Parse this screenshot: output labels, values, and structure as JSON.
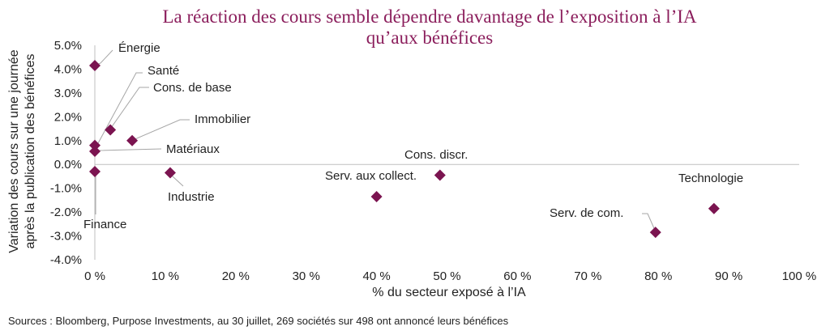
{
  "chart_data": {
    "type": "scatter",
    "title_line1": "La réaction des cours semble dépendre davantage de l’exposition à l’IA",
    "title_line2": "qu’aux bénéfices",
    "xlabel": "% du secteur exposé à l’IA",
    "ylabel_line1": "Variation des cours sur une journée",
    "ylabel_line2": "après la publication des bénéfices",
    "xlim": [
      0,
      100
    ],
    "ylim": [
      -4,
      5
    ],
    "x_ticks": [
      0,
      10,
      20,
      30,
      40,
      50,
      60,
      70,
      80,
      90,
      100
    ],
    "x_tick_labels": [
      "0 %",
      "10 %",
      "20 %",
      "30 %",
      "40 %",
      "50 %",
      "60 %",
      "70 %",
      "80 %",
      "90 %",
      "100 %"
    ],
    "y_ticks": [
      5,
      4,
      3,
      2,
      1,
      0,
      -1,
      -2,
      -3,
      -4
    ],
    "y_tick_labels": [
      "5.0%",
      "4.0%",
      "3.0%",
      "2.0%",
      "1.0%",
      "0.0%",
      "-1.0%",
      "-2.0%",
      "-3.0%",
      "-4.0%"
    ],
    "grid": false,
    "marker_color": "#7b1450",
    "points": [
      {
        "label": "Énergie",
        "x": 0.0,
        "y": 4.15
      },
      {
        "label": "Santé",
        "x": 0.0,
        "y": 0.8
      },
      {
        "label": "Cons. de base",
        "x": 2.2,
        "y": 1.45
      },
      {
        "label": "Immobilier",
        "x": 5.3,
        "y": 1.0
      },
      {
        "label": "Matériaux",
        "x": 0.0,
        "y": 0.55
      },
      {
        "label": "Finance",
        "x": 0.0,
        "y": -0.3
      },
      {
        "label": "Industrie",
        "x": 10.7,
        "y": -0.35
      },
      {
        "label": "Serv. aux collect.",
        "x": 40.0,
        "y": -1.35
      },
      {
        "label": "Cons. discr.",
        "x": 49.0,
        "y": -0.45
      },
      {
        "label": "Serv. de com.",
        "x": 79.6,
        "y": -2.85
      },
      {
        "label": "Technologie",
        "x": 87.9,
        "y": -1.85
      }
    ]
  },
  "source": "Sources : Bloomberg, Purpose Investments, au 30 juillet, 269 sociétés sur 498 ont annoncé leurs bénéfices"
}
